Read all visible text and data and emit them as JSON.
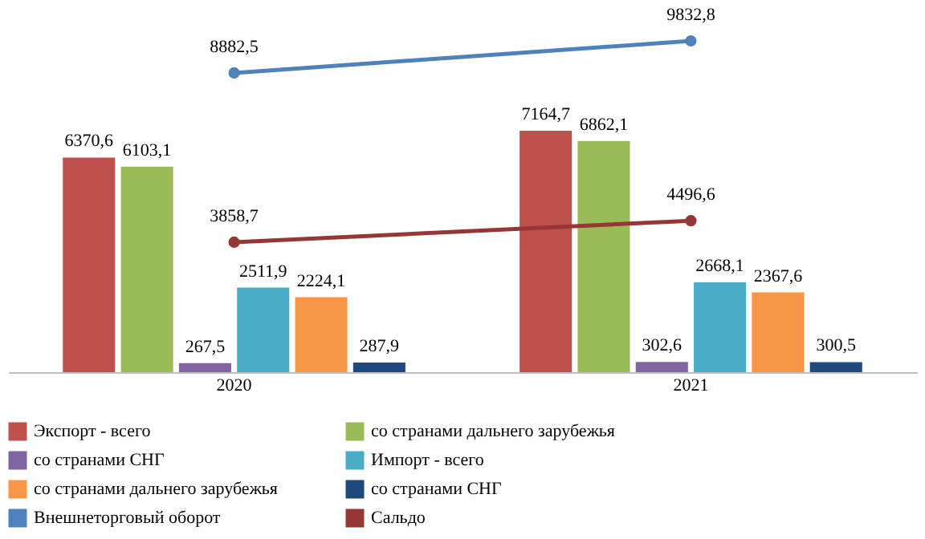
{
  "chart_data": {
    "type": "bar",
    "categories": [
      "2020",
      "2021"
    ],
    "series": [
      {
        "name": "Экспорт - всего",
        "color": "#c0504d",
        "values": [
          6370.6,
          7164.7
        ],
        "value_labels": [
          "6370,6",
          "7164,7"
        ]
      },
      {
        "name": "со странами дальнего зарубежья",
        "color": "#9bbb59",
        "values": [
          6103.1,
          6862.1
        ],
        "value_labels": [
          "6103,1",
          "6862,1"
        ]
      },
      {
        "name": "со странами СНГ",
        "color": "#8064a2",
        "values": [
          267.5,
          302.6
        ],
        "value_labels": [
          "267,5",
          "302,6"
        ]
      },
      {
        "name": "Импорт - всего",
        "color": "#4bacc6",
        "values": [
          2511.9,
          2668.1
        ],
        "value_labels": [
          "2511,9",
          "2668,1"
        ]
      },
      {
        "name": "со странами дальнего зарубежья",
        "color": "#f79646",
        "values": [
          2224.1,
          2367.6
        ],
        "value_labels": [
          "2224,1",
          "2367,6"
        ]
      },
      {
        "name": "со странами СНГ",
        "color": "#1f497d",
        "values": [
          287.9,
          300.5
        ],
        "value_labels": [
          "287,9",
          "300,5"
        ]
      },
      {
        "name": "Внешнеторговый оборот",
        "color": "#4f81bd",
        "type": "line",
        "values": [
          8882.5,
          9832.8
        ],
        "value_labels": [
          "8882,5",
          "9832,8"
        ]
      },
      {
        "name": "Сальдо",
        "color": "#953735",
        "type": "line",
        "values": [
          3858.7,
          4496.6
        ],
        "value_labels": [
          "3858,7",
          "4496,6"
        ]
      }
    ],
    "legend": "bottom",
    "grid": false,
    "marker": "circle",
    "line_style": "solid"
  }
}
